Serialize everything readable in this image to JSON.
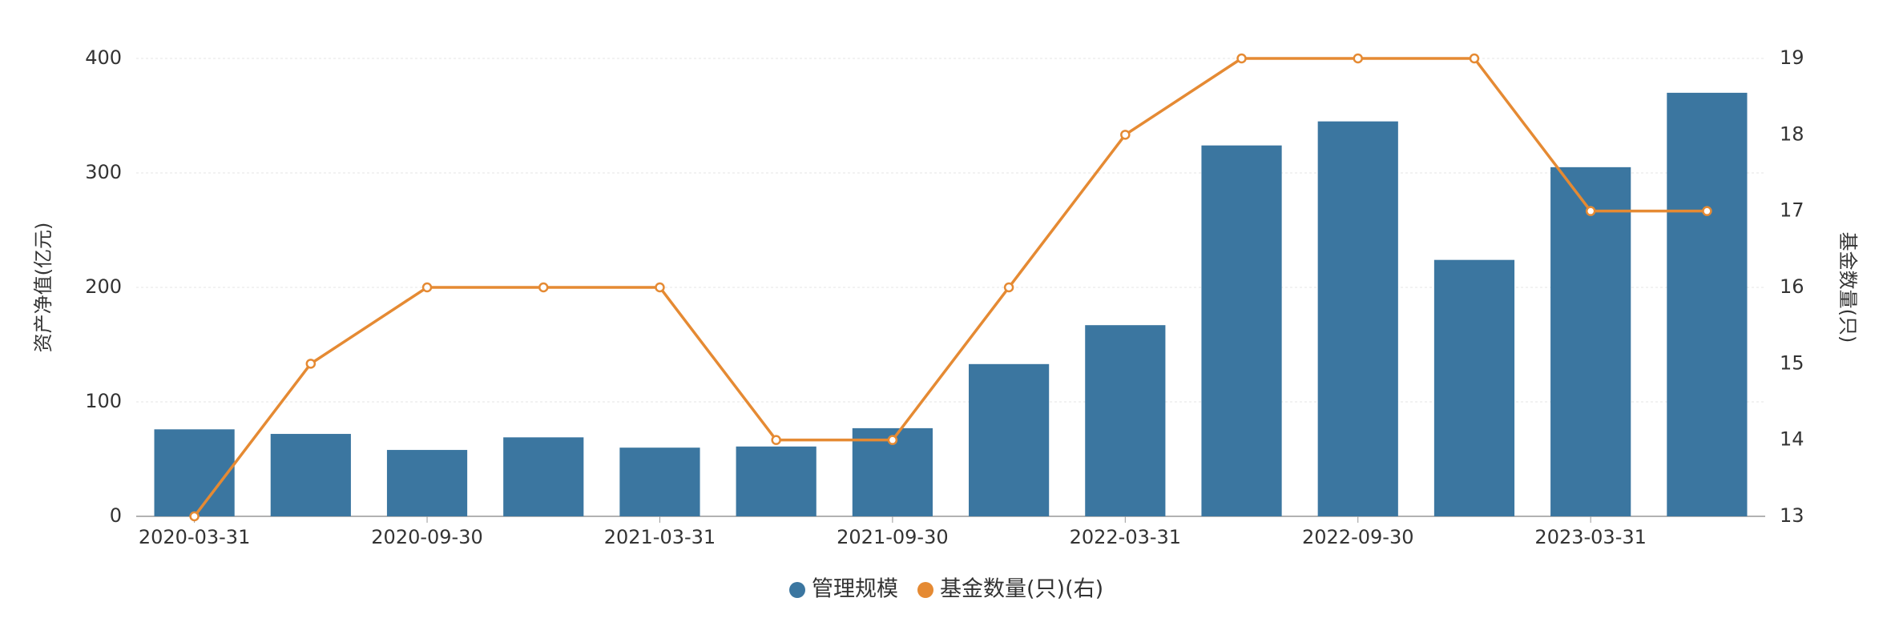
{
  "chart_data": {
    "type": "bar_line",
    "categories": [
      "2020-03-31",
      null,
      "2020-09-30",
      null,
      "2021-03-31",
      null,
      "2021-09-30",
      null,
      "2022-03-31",
      null,
      "2022-09-30",
      null,
      "2023-03-31",
      null
    ],
    "ylabel": "资产净值(亿元)",
    "y2label": "基金数量(只)",
    "ylim": [
      0,
      400
    ],
    "yticks": [
      0,
      100,
      200,
      300,
      400
    ],
    "y2lim": [
      13,
      19
    ],
    "y2ticks": [
      13,
      14,
      15,
      16,
      17,
      18,
      19
    ],
    "grid": true,
    "legend": "bottom",
    "series": [
      {
        "name": "管理规模",
        "type": "bar",
        "color": "#3b76a0",
        "values": [
          76,
          72,
          58,
          69,
          60,
          61,
          77,
          133,
          167,
          324,
          345,
          224,
          305,
          370
        ]
      },
      {
        "name": "基金数量(只)(右)",
        "type": "line",
        "axis": "y2",
        "color": "#e58a33",
        "values": [
          13,
          15,
          16,
          16,
          16,
          14,
          14,
          16,
          18,
          19,
          19,
          19,
          17,
          17
        ]
      }
    ]
  }
}
